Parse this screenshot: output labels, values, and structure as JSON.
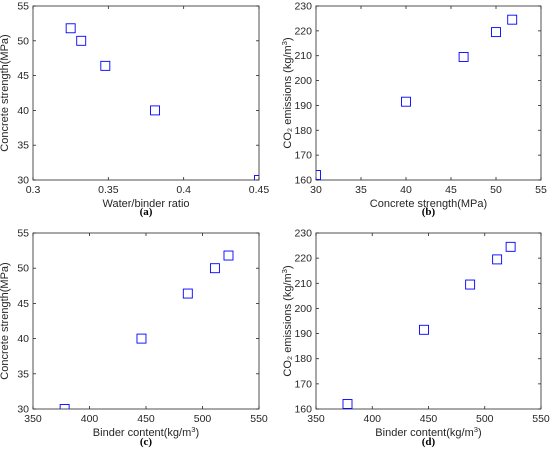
{
  "chart_data": [
    {
      "type": "scatter",
      "panel": "(a)",
      "xlabel": "Water/binder ratio",
      "ylabel": "Concrete strength(MPa)",
      "xlim": [
        0.3,
        0.45
      ],
      "ylim": [
        30,
        55
      ],
      "xticks": [
        "0.3",
        "0.35",
        "0.4",
        "0.45"
      ],
      "xtick_values": [
        0.3,
        0.35,
        0.4,
        0.45
      ],
      "yticks": [
        "30",
        "35",
        "40",
        "45",
        "50",
        "55"
      ],
      "ytick_values": [
        30,
        35,
        40,
        45,
        50,
        55
      ],
      "x": [
        0.325,
        0.332,
        0.348,
        0.381,
        0.45
      ],
      "y": [
        51.8,
        50.0,
        46.4,
        40.0,
        30.0
      ]
    },
    {
      "type": "scatter",
      "panel": "(b)",
      "xlabel": "Concrete strength(MPa)",
      "ylabel": "CO₂ emissions (kg/m³)",
      "xlim": [
        30,
        55
      ],
      "ylim": [
        160,
        230
      ],
      "xticks": [
        "30",
        "35",
        "40",
        "45",
        "50",
        "55"
      ],
      "xtick_values": [
        30,
        35,
        40,
        45,
        50,
        55
      ],
      "yticks": [
        "160",
        "170",
        "180",
        "190",
        "200",
        "210",
        "220",
        "230"
      ],
      "ytick_values": [
        160,
        170,
        180,
        190,
        200,
        210,
        220,
        230
      ],
      "x": [
        30.0,
        40.0,
        46.4,
        50.0,
        51.8
      ],
      "y": [
        162,
        191.5,
        209.5,
        219.5,
        224.5
      ]
    },
    {
      "type": "scatter",
      "panel": "(c)",
      "xlabel": "Binder content(kg/m³)",
      "ylabel": "Concrete strength(MPa)",
      "xlim": [
        350,
        550
      ],
      "ylim": [
        30,
        55
      ],
      "xticks": [
        "350",
        "400",
        "450",
        "500",
        "550"
      ],
      "xtick_values": [
        350,
        400,
        450,
        500,
        550
      ],
      "yticks": [
        "30",
        "35",
        "40",
        "45",
        "50",
        "55"
      ],
      "ytick_values": [
        30,
        35,
        40,
        45,
        50,
        55
      ],
      "x": [
        378,
        446,
        487,
        511,
        523
      ],
      "y": [
        30.0,
        40.0,
        46.4,
        50.0,
        51.8
      ]
    },
    {
      "type": "scatter",
      "panel": "(d)",
      "xlabel": "Binder content(kg/m³)",
      "ylabel": "CO₂ emissions (kg/m³)",
      "xlim": [
        350,
        550
      ],
      "ylim": [
        160,
        230
      ],
      "xticks": [
        "350",
        "400",
        "450",
        "500",
        "550"
      ],
      "xtick_values": [
        350,
        400,
        450,
        500,
        550
      ],
      "yticks": [
        "160",
        "170",
        "180",
        "190",
        "200",
        "210",
        "220",
        "230"
      ],
      "ytick_values": [
        160,
        170,
        180,
        190,
        200,
        210,
        220,
        230
      ],
      "x": [
        378,
        446,
        487,
        511,
        523
      ],
      "y": [
        162,
        191.5,
        209.5,
        219.5,
        224.5
      ]
    }
  ],
  "colors": {
    "marker": "#0000ff",
    "axis": "#262626"
  }
}
